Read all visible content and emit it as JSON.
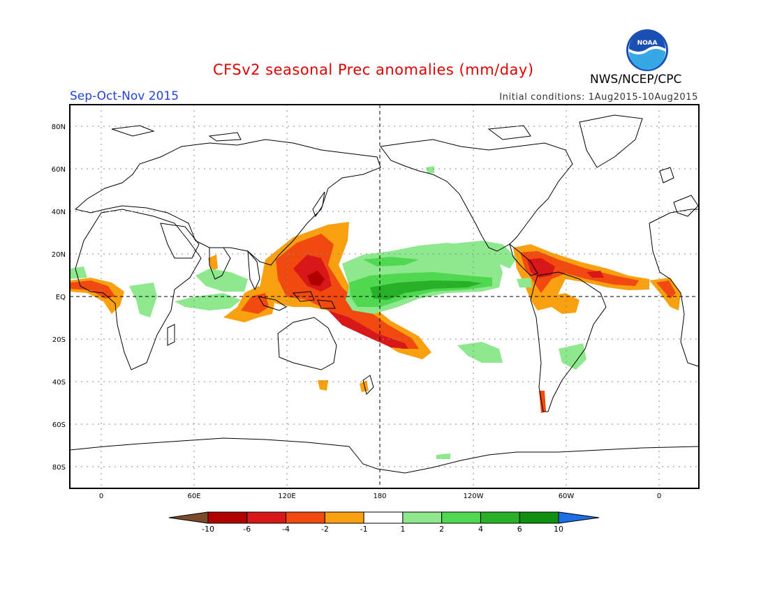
{
  "title": "CFSv2 seasonal Prec anomalies (mm/day)",
  "season": "Sep-Oct-Nov 2015",
  "initial_conditions": "Initial conditions: 1Aug2015-10Aug2015",
  "agency": "NWS/NCEP/CPC",
  "logo_text": "NOAA",
  "lat_labels": [
    "80N",
    "60N",
    "40N",
    "20N",
    "EQ",
    "20S",
    "40S",
    "60S",
    "80S"
  ],
  "lon_labels": [
    "0",
    "60E",
    "120E",
    "180",
    "120W",
    "60W",
    "0"
  ],
  "colorbar": {
    "labels": [
      "-10",
      "-6",
      "-4",
      "-2",
      "-1",
      "1",
      "2",
      "4",
      "6",
      "10"
    ],
    "colors": [
      "#7a4a2a",
      "#b00000",
      "#d81818",
      "#f04a10",
      "#f8a010",
      "#ffffff",
      "#8ee88e",
      "#50d850",
      "#28b028",
      "#109010",
      "#1e6ee6"
    ]
  },
  "map": {
    "land_outline_color": "#000000",
    "grid_color": "#888888",
    "anomaly_colors": {
      "dry_strong": "#d81818",
      "dry": "#f04a10",
      "dry_weak": "#f8a010",
      "wet_weak": "#8ee88e",
      "wet": "#50d850",
      "wet_strong": "#28b028"
    }
  }
}
